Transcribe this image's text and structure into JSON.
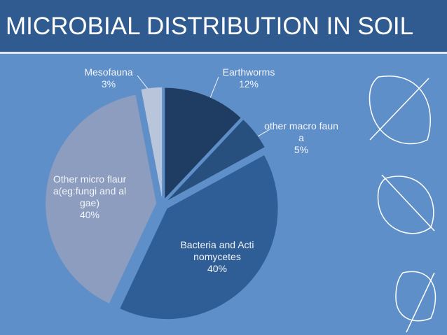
{
  "chart_data": {
    "type": "pie",
    "title": "MICROBIAL DISTRIBUTION IN SOIL",
    "categories": [
      "Earthworms",
      "other macro fauna",
      "Bacteria and Actinomycetes",
      "Other micro flaura(eg:fungi and algae)",
      "Mesofauna"
    ],
    "values": [
      12,
      5,
      40,
      40,
      3
    ],
    "value_labels": [
      "12%",
      "5%",
      "40%",
      "40%",
      "3%"
    ],
    "colors": [
      "#1f3c62",
      "#28507f",
      "#2f5e96",
      "#8c9dbf",
      "#b9c5da"
    ]
  }
}
